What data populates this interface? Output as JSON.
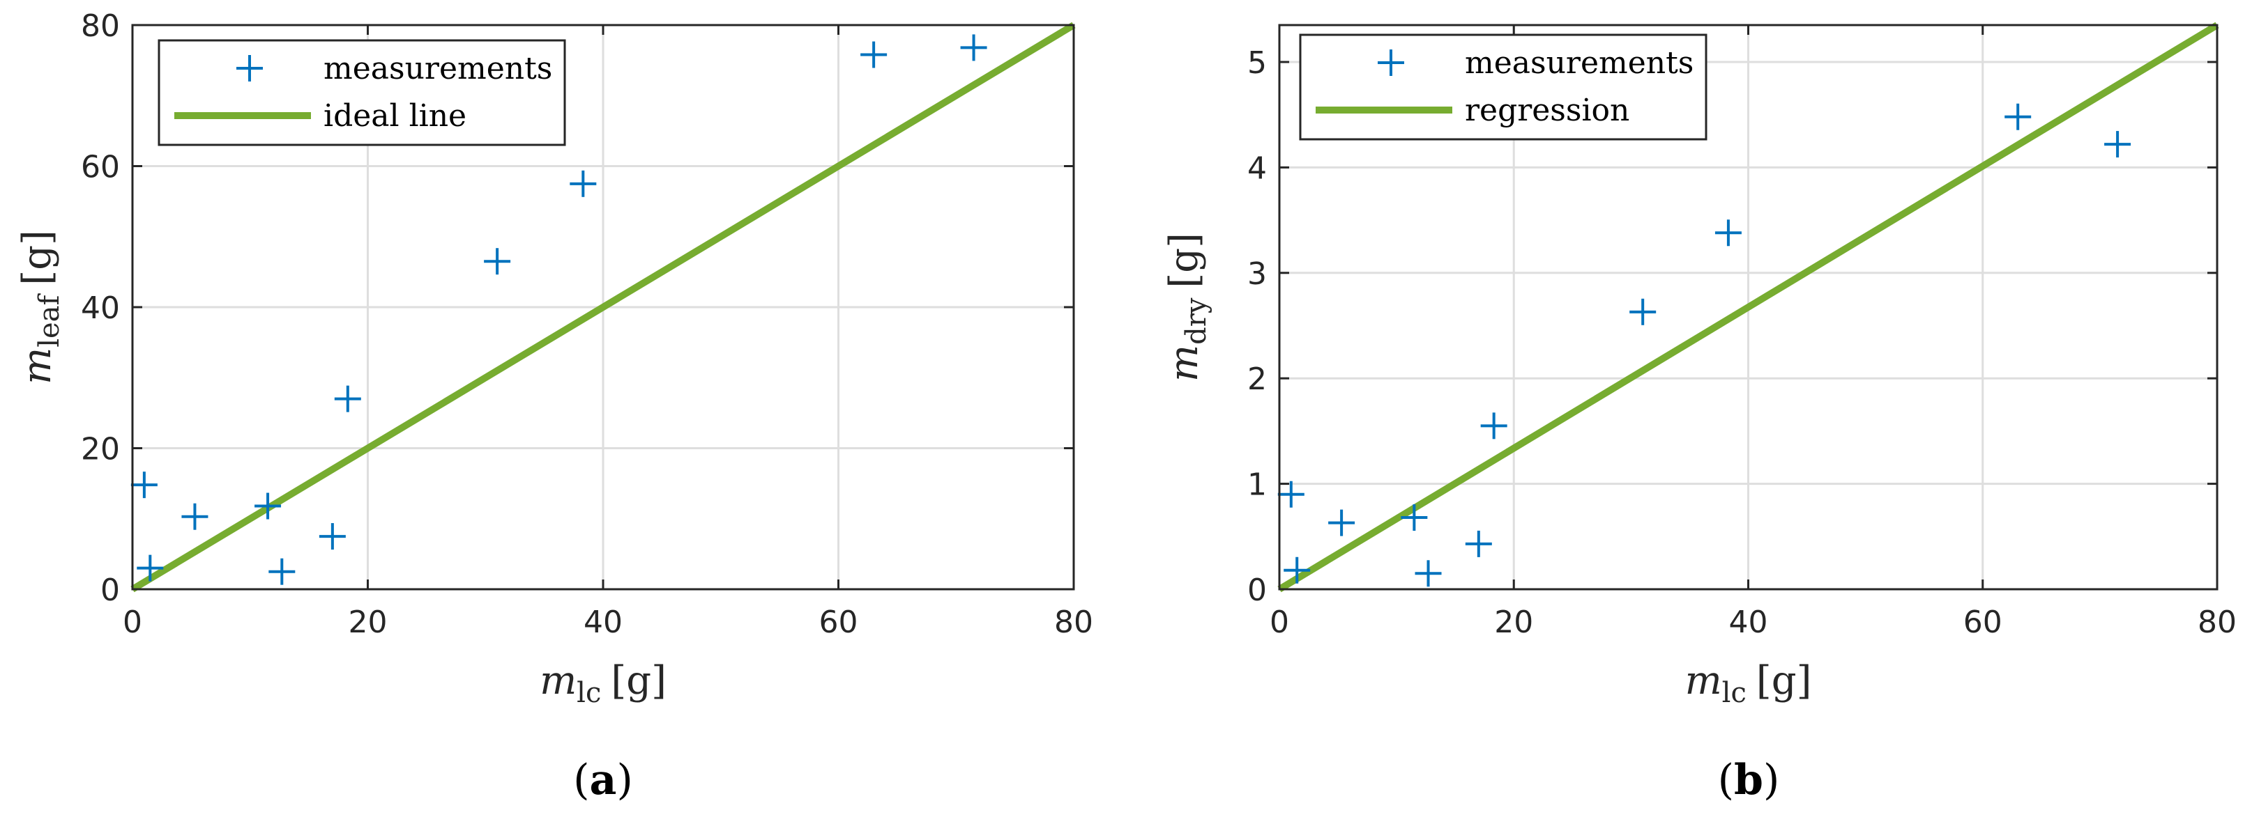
{
  "chart_data": [
    {
      "type": "scatter",
      "caption_letter": "a",
      "xlim": [
        0,
        80
      ],
      "ylim": [
        0,
        80
      ],
      "xticks": [
        0,
        20,
        40,
        60,
        80
      ],
      "yticks": [
        0,
        20,
        40,
        60,
        80
      ],
      "grid": true,
      "legend_position": "top-left",
      "xlabel": {
        "main": "m",
        "sub": "lc",
        "unit": "[g]"
      },
      "ylabel": {
        "main": "m",
        "sub": "leaf",
        "unit": "[g]"
      },
      "series": [
        {
          "name": "measurements",
          "kind": "points",
          "marker": "plus",
          "color": "#0072BD",
          "x": [
            1,
            1.5,
            5.3,
            11.5,
            12.7,
            17,
            18.3,
            31,
            38.3,
            63,
            71.5
          ],
          "y": [
            14.8,
            3.0,
            10.3,
            11.8,
            2.5,
            7.5,
            27.0,
            46.5,
            57.5,
            75.8,
            76.8
          ]
        },
        {
          "name": "ideal line",
          "kind": "line",
          "color": "#77AC30",
          "x": [
            0,
            80
          ],
          "y": [
            0,
            80
          ]
        }
      ]
    },
    {
      "type": "scatter",
      "caption_letter": "b",
      "xlim": [
        0,
        80
      ],
      "ylim": [
        0,
        5.35
      ],
      "xticks": [
        0,
        20,
        40,
        60,
        80
      ],
      "yticks": [
        0,
        1,
        2,
        3,
        4,
        5
      ],
      "grid": true,
      "legend_position": "top-left",
      "xlabel": {
        "main": "m",
        "sub": "lc",
        "unit": "[g]"
      },
      "ylabel": {
        "main": "m",
        "sub": "dry",
        "unit": "[g]"
      },
      "series": [
        {
          "name": "measurements",
          "kind": "points",
          "marker": "plus",
          "color": "#0072BD",
          "x": [
            1,
            1.5,
            5.3,
            11.5,
            12.7,
            17,
            18.3,
            31,
            38.3,
            63,
            71.5
          ],
          "y": [
            0.9,
            0.18,
            0.63,
            0.68,
            0.15,
            0.43,
            1.55,
            2.63,
            3.38,
            4.48,
            4.22
          ]
        },
        {
          "name": "regression",
          "kind": "line",
          "color": "#77AC30",
          "x": [
            0,
            80
          ],
          "y": [
            0,
            5.35
          ]
        }
      ]
    }
  ]
}
